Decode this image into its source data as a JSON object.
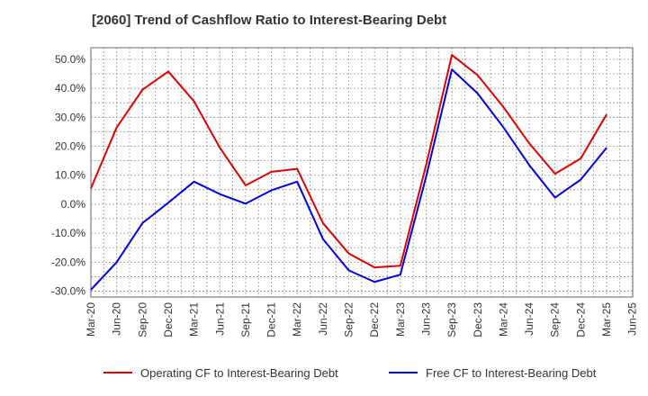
{
  "chart_data": {
    "type": "line",
    "title": "[2060]  Trend of Cashflow Ratio to Interest-Bearing Debt",
    "xlabel": "",
    "ylabel": "",
    "x_ticks": [
      "Mar-20",
      "Jun-20",
      "Sep-20",
      "Dec-20",
      "Mar-21",
      "Jun-21",
      "Sep-21",
      "Dec-21",
      "Mar-22",
      "Jun-22",
      "Sep-22",
      "Dec-22",
      "Mar-23",
      "Jun-23",
      "Sep-23",
      "Dec-23",
      "Mar-24",
      "Jun-24",
      "Sep-24",
      "Dec-24",
      "Mar-25",
      "Jun-25"
    ],
    "y_ticks": [
      50,
      40,
      30,
      20,
      10,
      0,
      -10,
      -20,
      -30
    ],
    "y_tick_labels": [
      "50.0%",
      "40.0%",
      "30.0%",
      "20.0%",
      "10.0%",
      "0.0%",
      "-10.0%",
      "-20.0%",
      "-30.0%"
    ],
    "ylim": [
      -32,
      54
    ],
    "grid": true,
    "legend_position": "bottom",
    "series": [
      {
        "name": "Operating CF to Interest-Bearing Debt",
        "color": "#e00000",
        "x": [
          "Mar-20",
          "Jun-20",
          "Sep-20",
          "Dec-20",
          "Mar-21",
          "Jun-21",
          "Sep-21",
          "Dec-21",
          "Mar-22",
          "Jun-22",
          "Sep-22",
          "Dec-22",
          "Mar-23",
          "Jun-23",
          "Sep-23",
          "Dec-23",
          "Mar-24",
          "Jun-24",
          "Sep-24",
          "Dec-24",
          "Mar-25"
        ],
        "values": [
          5.5,
          26.5,
          39.5,
          45.8,
          35.5,
          19.5,
          6.5,
          11.2,
          12.2,
          -6.5,
          -17.0,
          -21.8,
          -21.2,
          13.5,
          51.5,
          44.5,
          33.5,
          21.0,
          10.5,
          15.8,
          31.0
        ]
      },
      {
        "name": "Free CF to Interest-Bearing Debt",
        "color": "#0000e0",
        "x": [
          "Mar-20",
          "Jun-20",
          "Sep-20",
          "Dec-20",
          "Mar-21",
          "Jun-21",
          "Sep-21",
          "Dec-21",
          "Mar-22",
          "Jun-22",
          "Sep-22",
          "Dec-22",
          "Mar-23",
          "Jun-23",
          "Sep-23",
          "Dec-23",
          "Mar-24",
          "Jun-24",
          "Sep-24",
          "Dec-24",
          "Mar-25"
        ],
        "values": [
          -29.5,
          -20.0,
          -6.5,
          0.5,
          7.8,
          3.5,
          0.2,
          4.8,
          7.8,
          -12.0,
          -22.8,
          -26.8,
          -24.3,
          9.5,
          46.5,
          38.2,
          26.5,
          13.5,
          2.3,
          8.5,
          19.5
        ]
      }
    ]
  }
}
